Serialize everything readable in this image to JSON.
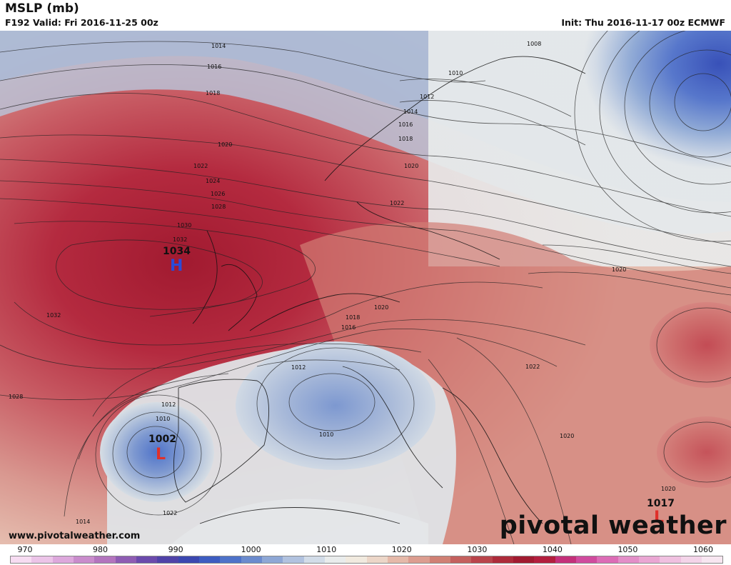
{
  "header": {
    "title": "MSLP (mb)",
    "valid": "F192 Valid: Fri 2016-11-25 00z",
    "init": "Init: Thu 2016-11-17 00z ECMWF"
  },
  "footer": {
    "url": "www.pivotalweather.com",
    "brand": "pivotal weather"
  },
  "colorbar": {
    "ticks": [
      "970",
      "980",
      "990",
      "1000",
      "1010",
      "1020",
      "1030",
      "1040",
      "1050",
      "1060"
    ],
    "colors": [
      "#f7dcf2",
      "#ecc4e8",
      "#dda8dc",
      "#c98ccc",
      "#b374be",
      "#8e5cb3",
      "#6b4aac",
      "#5042a8",
      "#3b47b0",
      "#3d5cc1",
      "#4e72c9",
      "#6b8bce",
      "#8ea7d5",
      "#b1c2df",
      "#d2dce8",
      "#e9ecec",
      "#f1eadf",
      "#ecd6c8",
      "#e5b9a9",
      "#dc9d90",
      "#d08074",
      "#c4605e",
      "#b9444b",
      "#ad2b3a",
      "#a11a30",
      "#b31e3e",
      "#c4307a",
      "#d04b9e",
      "#dc6cb6",
      "#e38ec8",
      "#eaa6d3",
      "#f0c0e0",
      "#f4d4e9",
      "#f8e6f1"
    ]
  },
  "map": {
    "highs": [
      {
        "label": "H",
        "value": "1034"
      }
    ],
    "lows": [
      {
        "label": "L",
        "value": "1002"
      },
      {
        "label": "L",
        "value": "1017"
      }
    ],
    "isobar_labels": [
      "1014",
      "1016",
      "1018",
      "1020",
      "1022",
      "1024",
      "1026",
      "1028",
      "1030",
      "1032",
      "1034",
      "1032",
      "1028",
      "1020",
      "1018",
      "1016",
      "1022",
      "1020",
      "1008",
      "1010",
      "1012",
      "1014",
      "1016",
      "1018",
      "1020",
      "1012",
      "1010",
      "1010",
      "1012",
      "1014",
      "1020",
      "1022",
      "1020",
      "1022",
      "1020"
    ]
  }
}
